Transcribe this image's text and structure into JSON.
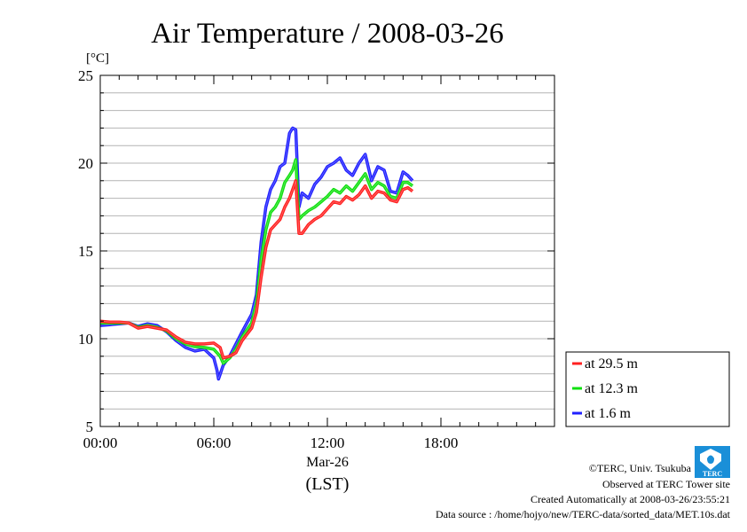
{
  "chart_data": {
    "type": "line",
    "title": "Air Temperature / 2008-03-26",
    "ylabel": "[°C]",
    "xlabel": "(LST)",
    "date_label": "Mar-26",
    "ylim": [
      5,
      25
    ],
    "yticks": [
      5,
      10,
      15,
      20,
      25
    ],
    "yticks_minor_step": 1,
    "xlim": [
      "2008-03-26 00:00",
      "2008-03-27 00:00"
    ],
    "xticks": [
      {
        "t": "2008-03-26 00:00",
        "label": "00:00"
      },
      {
        "t": "2008-03-26 06:00",
        "label": "06:00"
      },
      {
        "t": "2008-03-26 12:00",
        "label": "12:00"
      },
      {
        "t": "2008-03-26 18:00",
        "label": "18:00"
      }
    ],
    "grid": true,
    "legend_position": "right-bottom",
    "series": [
      {
        "name": "at 29.5 m",
        "color": "#ff2020",
        "points": [
          [
            "2008-03-26 00:00",
            11.0
          ],
          [
            "2008-03-26 00:30",
            10.95
          ],
          [
            "2008-03-26 01:00",
            10.95
          ],
          [
            "2008-03-26 01:30",
            10.9
          ],
          [
            "2008-03-26 02:00",
            10.6
          ],
          [
            "2008-03-26 02:30",
            10.7
          ],
          [
            "2008-03-26 03:00",
            10.6
          ],
          [
            "2008-03-26 03:30",
            10.5
          ],
          [
            "2008-03-26 04:00",
            10.1
          ],
          [
            "2008-03-26 04:30",
            9.8
          ],
          [
            "2008-03-26 05:00",
            9.7
          ],
          [
            "2008-03-26 05:30",
            9.7
          ],
          [
            "2008-03-26 06:00",
            9.75
          ],
          [
            "2008-03-26 06:20",
            9.5
          ],
          [
            "2008-03-26 06:30",
            8.9
          ],
          [
            "2008-03-26 06:50",
            9.0
          ],
          [
            "2008-03-26 07:10",
            9.2
          ],
          [
            "2008-03-26 07:30",
            9.9
          ],
          [
            "2008-03-26 08:00",
            10.6
          ],
          [
            "2008-03-26 08:15",
            11.5
          ],
          [
            "2008-03-26 08:30",
            13.5
          ],
          [
            "2008-03-26 08:45",
            15.2
          ],
          [
            "2008-03-26 09:00",
            16.2
          ],
          [
            "2008-03-26 09:15",
            16.5
          ],
          [
            "2008-03-26 09:30",
            16.8
          ],
          [
            "2008-03-26 09:45",
            17.5
          ],
          [
            "2008-03-26 10:00",
            18.0
          ],
          [
            "2008-03-26 10:10",
            18.5
          ],
          [
            "2008-03-26 10:20",
            19.0
          ],
          [
            "2008-03-26 10:30",
            16.0
          ],
          [
            "2008-03-26 10:40",
            16.0
          ],
          [
            "2008-03-26 11:00",
            16.5
          ],
          [
            "2008-03-26 11:20",
            16.8
          ],
          [
            "2008-03-26 11:40",
            17.0
          ],
          [
            "2008-03-26 12:00",
            17.4
          ],
          [
            "2008-03-26 12:20",
            17.8
          ],
          [
            "2008-03-26 12:40",
            17.7
          ],
          [
            "2008-03-26 13:00",
            18.1
          ],
          [
            "2008-03-26 13:20",
            17.9
          ],
          [
            "2008-03-26 13:40",
            18.2
          ],
          [
            "2008-03-26 14:00",
            18.7
          ],
          [
            "2008-03-26 14:20",
            18.0
          ],
          [
            "2008-03-26 14:40",
            18.4
          ],
          [
            "2008-03-26 15:00",
            18.3
          ],
          [
            "2008-03-26 15:20",
            17.9
          ],
          [
            "2008-03-26 15:40",
            17.8
          ],
          [
            "2008-03-26 16:00",
            18.5
          ],
          [
            "2008-03-26 16:15",
            18.6
          ],
          [
            "2008-03-26 16:30",
            18.4
          ]
        ]
      },
      {
        "name": "at 12.3 m",
        "color": "#10e010",
        "points": [
          [
            "2008-03-26 00:00",
            10.9
          ],
          [
            "2008-03-26 00:30",
            10.9
          ],
          [
            "2008-03-26 01:00",
            10.9
          ],
          [
            "2008-03-26 01:30",
            10.9
          ],
          [
            "2008-03-26 02:00",
            10.65
          ],
          [
            "2008-03-26 02:30",
            10.75
          ],
          [
            "2008-03-26 03:00",
            10.65
          ],
          [
            "2008-03-26 03:30",
            10.45
          ],
          [
            "2008-03-26 04:00",
            10.0
          ],
          [
            "2008-03-26 04:30",
            9.7
          ],
          [
            "2008-03-26 05:00",
            9.55
          ],
          [
            "2008-03-26 05:30",
            9.5
          ],
          [
            "2008-03-26 06:00",
            9.4
          ],
          [
            "2008-03-26 06:20",
            9.0
          ],
          [
            "2008-03-26 06:30",
            8.6
          ],
          [
            "2008-03-26 06:50",
            8.9
          ],
          [
            "2008-03-26 07:10",
            9.4
          ],
          [
            "2008-03-26 07:30",
            10.1
          ],
          [
            "2008-03-26 08:00",
            10.9
          ],
          [
            "2008-03-26 08:15",
            12.0
          ],
          [
            "2008-03-26 08:30",
            14.5
          ],
          [
            "2008-03-26 08:45",
            16.2
          ],
          [
            "2008-03-26 09:00",
            17.2
          ],
          [
            "2008-03-26 09:15",
            17.5
          ],
          [
            "2008-03-26 09:30",
            18.0
          ],
          [
            "2008-03-26 09:45",
            18.9
          ],
          [
            "2008-03-26 10:00",
            19.3
          ],
          [
            "2008-03-26 10:10",
            19.6
          ],
          [
            "2008-03-26 10:20",
            20.2
          ],
          [
            "2008-03-26 10:30",
            16.8
          ],
          [
            "2008-03-26 10:40",
            17.0
          ],
          [
            "2008-03-26 11:00",
            17.3
          ],
          [
            "2008-03-26 11:20",
            17.5
          ],
          [
            "2008-03-26 11:40",
            17.8
          ],
          [
            "2008-03-26 12:00",
            18.1
          ],
          [
            "2008-03-26 12:20",
            18.5
          ],
          [
            "2008-03-26 12:40",
            18.3
          ],
          [
            "2008-03-26 13:00",
            18.7
          ],
          [
            "2008-03-26 13:20",
            18.4
          ],
          [
            "2008-03-26 13:40",
            18.9
          ],
          [
            "2008-03-26 14:00",
            19.4
          ],
          [
            "2008-03-26 14:20",
            18.5
          ],
          [
            "2008-03-26 14:40",
            18.9
          ],
          [
            "2008-03-26 15:00",
            18.7
          ],
          [
            "2008-03-26 15:20",
            18.1
          ],
          [
            "2008-03-26 15:40",
            18.0
          ],
          [
            "2008-03-26 16:00",
            18.9
          ],
          [
            "2008-03-26 16:15",
            18.9
          ],
          [
            "2008-03-26 16:30",
            18.7
          ]
        ]
      },
      {
        "name": "at 1.6 m",
        "color": "#2020ff",
        "points": [
          [
            "2008-03-26 00:00",
            10.75
          ],
          [
            "2008-03-26 00:30",
            10.8
          ],
          [
            "2008-03-26 01:00",
            10.85
          ],
          [
            "2008-03-26 01:30",
            10.9
          ],
          [
            "2008-03-26 02:00",
            10.7
          ],
          [
            "2008-03-26 02:30",
            10.85
          ],
          [
            "2008-03-26 03:00",
            10.75
          ],
          [
            "2008-03-26 03:30",
            10.4
          ],
          [
            "2008-03-26 04:00",
            9.9
          ],
          [
            "2008-03-26 04:30",
            9.5
          ],
          [
            "2008-03-26 05:00",
            9.3
          ],
          [
            "2008-03-26 05:30",
            9.4
          ],
          [
            "2008-03-26 06:00",
            8.9
          ],
          [
            "2008-03-26 06:10",
            8.2
          ],
          [
            "2008-03-26 06:15",
            7.7
          ],
          [
            "2008-03-26 06:30",
            8.5
          ],
          [
            "2008-03-26 06:50",
            9.0
          ],
          [
            "2008-03-26 07:10",
            9.7
          ],
          [
            "2008-03-26 07:30",
            10.4
          ],
          [
            "2008-03-26 08:00",
            11.4
          ],
          [
            "2008-03-26 08:15",
            12.5
          ],
          [
            "2008-03-26 08:30",
            15.5
          ],
          [
            "2008-03-26 08:45",
            17.5
          ],
          [
            "2008-03-26 09:00",
            18.5
          ],
          [
            "2008-03-26 09:15",
            19.0
          ],
          [
            "2008-03-26 09:30",
            19.8
          ],
          [
            "2008-03-26 09:45",
            20.0
          ],
          [
            "2008-03-26 10:00",
            21.7
          ],
          [
            "2008-03-26 10:10",
            22.0
          ],
          [
            "2008-03-26 10:20",
            21.9
          ],
          [
            "2008-03-26 10:30",
            17.5
          ],
          [
            "2008-03-26 10:40",
            18.3
          ],
          [
            "2008-03-26 11:00",
            18.0
          ],
          [
            "2008-03-26 11:20",
            18.8
          ],
          [
            "2008-03-26 11:40",
            19.2
          ],
          [
            "2008-03-26 12:00",
            19.8
          ],
          [
            "2008-03-26 12:20",
            20.0
          ],
          [
            "2008-03-26 12:40",
            20.3
          ],
          [
            "2008-03-26 13:00",
            19.6
          ],
          [
            "2008-03-26 13:20",
            19.3
          ],
          [
            "2008-03-26 13:40",
            20.0
          ],
          [
            "2008-03-26 14:00",
            20.5
          ],
          [
            "2008-03-26 14:20",
            19.0
          ],
          [
            "2008-03-26 14:40",
            19.8
          ],
          [
            "2008-03-26 15:00",
            19.6
          ],
          [
            "2008-03-26 15:20",
            18.4
          ],
          [
            "2008-03-26 15:40",
            18.3
          ],
          [
            "2008-03-26 16:00",
            19.5
          ],
          [
            "2008-03-26 16:15",
            19.3
          ],
          [
            "2008-03-26 16:30",
            19.0
          ]
        ]
      }
    ]
  },
  "footer": {
    "copyright": "©TERC, Univ. Tsukuba",
    "observed": "Observed at TERC Tower site",
    "created": "Created Automatically at 2008-03-26/23:55:21",
    "source": "Data source : /home/hojyo/new/TERC-data/sorted_data/MET.10s.dat",
    "logo_text": "TERC"
  }
}
